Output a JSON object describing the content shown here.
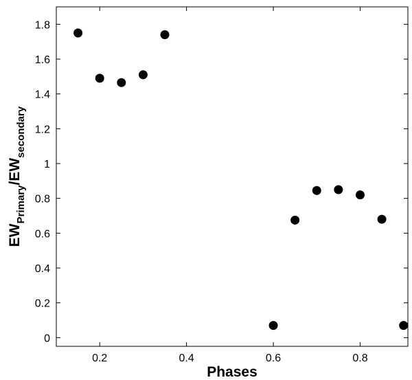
{
  "chart_data": {
    "type": "scatter",
    "title": "",
    "xlabel": "Phases",
    "ylabel": {
      "base1": "EW",
      "sub1": "Primary",
      "sep": "/EW",
      "sub2": "secondary"
    },
    "xlim": [
      0.1,
      0.91
    ],
    "ylim": [
      -0.05,
      1.9
    ],
    "x_ticks": [
      {
        "value": 0.2,
        "label": "0.2"
      },
      {
        "value": 0.4,
        "label": "0.4"
      },
      {
        "value": 0.6,
        "label": "0.6"
      },
      {
        "value": 0.8,
        "label": "0.8"
      }
    ],
    "y_ticks": [
      {
        "value": 0,
        "label": "0"
      },
      {
        "value": 0.2,
        "label": "0.2"
      },
      {
        "value": 0.4,
        "label": "0.4"
      },
      {
        "value": 0.6,
        "label": "0.6"
      },
      {
        "value": 0.8,
        "label": "0.8"
      },
      {
        "value": 1,
        "label": "1"
      },
      {
        "value": 1.2,
        "label": "1.2"
      },
      {
        "value": 1.4,
        "label": "1.4"
      },
      {
        "value": 1.6,
        "label": "1.6"
      },
      {
        "value": 1.8,
        "label": "1.8"
      }
    ],
    "grid": false,
    "legend": "none",
    "marker_color": "#000000",
    "series": [
      {
        "points": [
          {
            "x": 0.15,
            "y": 1.75
          },
          {
            "x": 0.2,
            "y": 1.49
          },
          {
            "x": 0.25,
            "y": 1.465
          },
          {
            "x": 0.3,
            "y": 1.51
          },
          {
            "x": 0.35,
            "y": 1.74
          },
          {
            "x": 0.6,
            "y": 0.07
          },
          {
            "x": 0.65,
            "y": 0.675
          },
          {
            "x": 0.7,
            "y": 0.845
          },
          {
            "x": 0.75,
            "y": 0.85
          },
          {
            "x": 0.8,
            "y": 0.82
          },
          {
            "x": 0.85,
            "y": 0.68
          },
          {
            "x": 0.9,
            "y": 0.07
          }
        ]
      }
    ]
  }
}
